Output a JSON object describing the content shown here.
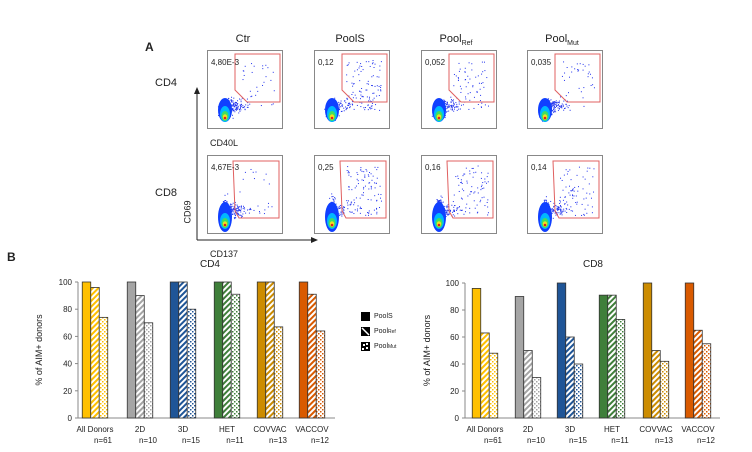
{
  "panel_a": {
    "letter": "A",
    "columns": [
      {
        "label": "Ctr",
        "sub": ""
      },
      {
        "label": "PoolS",
        "sub": ""
      },
      {
        "label": "Pool",
        "sub": "Ref"
      },
      {
        "label": "Pool",
        "sub": "Mut"
      }
    ],
    "rows": [
      {
        "label": "CD4",
        "x_marker": "CD40L",
        "values": [
          "4,80E-3",
          "0,12",
          "0,052",
          "0,035"
        ]
      },
      {
        "label": "CD8",
        "x_marker": "CD137",
        "values": [
          "4,67E-3",
          "0,25",
          "0,16",
          "0,14"
        ]
      }
    ],
    "y_marker": "CD69"
  },
  "panel_b": {
    "letter": "B",
    "legend": [
      {
        "label": "PoolS",
        "sub": "",
        "pattern": "solid"
      },
      {
        "label": "Pool",
        "sub": "Ref",
        "pattern": "hatched"
      },
      {
        "label": "Pool",
        "sub": "Mut",
        "pattern": "dotted"
      }
    ]
  },
  "chart_data": [
    {
      "type": "bar",
      "title": "CD4",
      "ylabel": "% of AIM+ donors",
      "xlabel": "",
      "ylim": [
        0,
        100
      ],
      "yticks": [
        0,
        20,
        40,
        60,
        80,
        100
      ],
      "categories": [
        "All Donors",
        "2D",
        "3D",
        "HET",
        "COVVAC",
        "VACCOV"
      ],
      "category_n": [
        "n=61",
        "n=10",
        "n=15",
        "n=11",
        "n=13",
        "n=12"
      ],
      "category_colors": [
        "#FFC000",
        "#A5A5A5",
        "#1F5597",
        "#3F7F3A",
        "#CC8C00",
        "#D95A00"
      ],
      "series": [
        {
          "name": "PoolS",
          "values": [
            100,
            100,
            100,
            100,
            100,
            100
          ]
        },
        {
          "name": "PoolRef",
          "values": [
            96,
            90,
            100,
            100,
            100,
            91
          ]
        },
        {
          "name": "PoolMut",
          "values": [
            74,
            70,
            80,
            91,
            67,
            64
          ]
        }
      ]
    },
    {
      "type": "bar",
      "title": "CD8",
      "ylabel": "% of AIM+ donors",
      "xlabel": "",
      "ylim": [
        0,
        100
      ],
      "yticks": [
        0,
        20,
        40,
        60,
        80,
        100
      ],
      "categories": [
        "All Donors",
        "2D",
        "3D",
        "HET",
        "COVVAC",
        "VACCOV"
      ],
      "category_n": [
        "n=61",
        "n=10",
        "n=15",
        "n=11",
        "n=13",
        "n=12"
      ],
      "category_colors": [
        "#FFC000",
        "#A5A5A5",
        "#1F5597",
        "#3F7F3A",
        "#CC8C00",
        "#D95A00"
      ],
      "series": [
        {
          "name": "PoolS",
          "values": [
            96,
            90,
            100,
            91,
            100,
            100
          ]
        },
        {
          "name": "PoolRef",
          "values": [
            63,
            50,
            60,
            91,
            50,
            65
          ]
        },
        {
          "name": "PoolMut",
          "values": [
            48,
            30,
            40,
            73,
            42,
            55
          ]
        }
      ]
    }
  ]
}
